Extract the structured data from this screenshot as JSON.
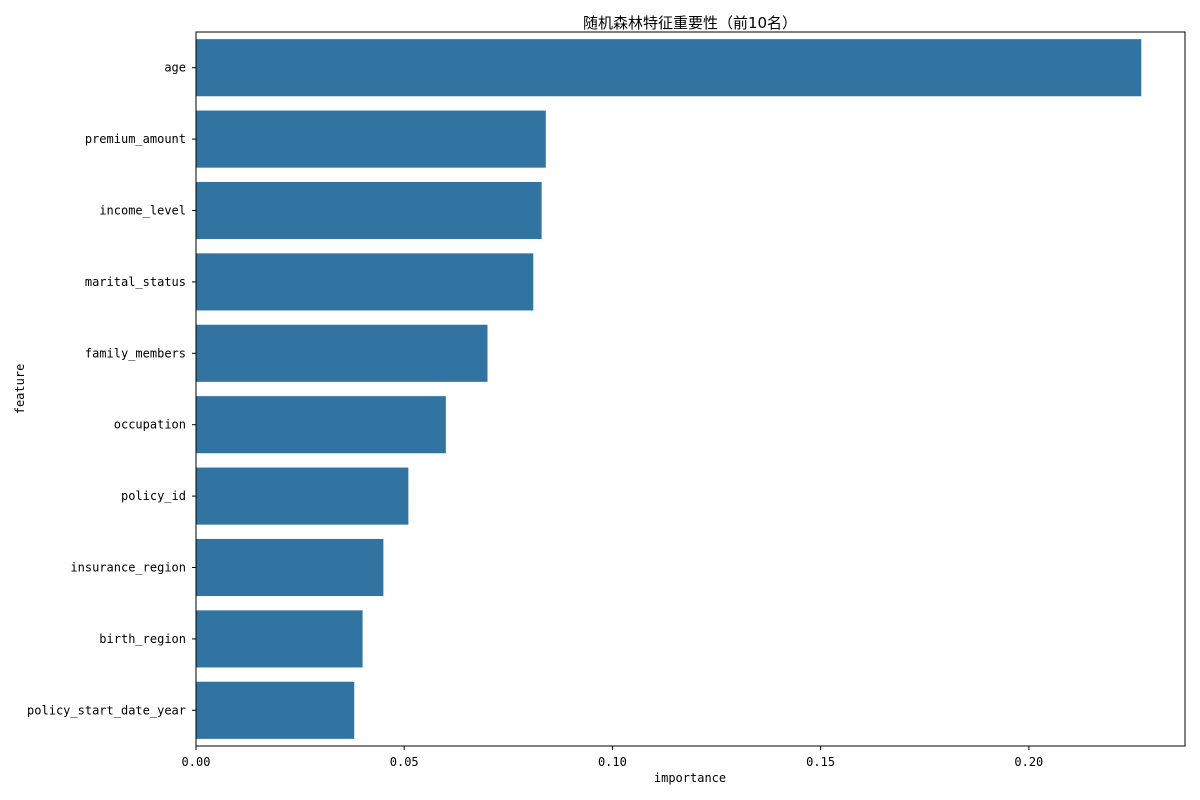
{
  "chart_data": {
    "type": "bar",
    "orientation": "horizontal",
    "title": "随机森林特征重要性（前10名）",
    "xlabel": "importance",
    "ylabel": "feature",
    "categories": [
      "age",
      "premium_amount",
      "income_level",
      "marital_status",
      "family_members",
      "occupation",
      "policy_id",
      "insurance_region",
      "birth_region",
      "policy_start_date_year"
    ],
    "values": [
      0.227,
      0.084,
      0.083,
      0.081,
      0.07,
      0.06,
      0.051,
      0.045,
      0.04,
      0.038
    ],
    "xlim": [
      0,
      0.2375
    ],
    "xticks": [
      0.0,
      0.05,
      0.1,
      0.15,
      0.2
    ],
    "xtick_labels": [
      "0.00",
      "0.05",
      "0.10",
      "0.15",
      "0.20"
    ],
    "bar_color": "#3274a1",
    "grid": false
  }
}
